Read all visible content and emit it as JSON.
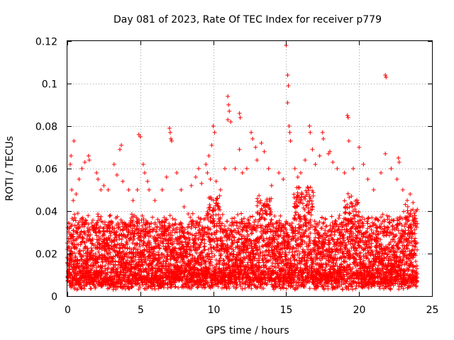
{
  "chart_data": {
    "type": "scatter",
    "title": "Day 081 of 2023, Rate Of TEC Index for receiver p779",
    "xlabel": "GPS time / hours",
    "ylabel": "ROTI / TECUs",
    "xlim": [
      0,
      25
    ],
    "ylim": [
      0,
      0.12
    ],
    "x_ticks": [
      "0",
      "5",
      "10",
      "15",
      "20",
      "25"
    ],
    "y_ticks": [
      "0",
      "0.02",
      "0.04",
      "0.06",
      "0.08",
      "0.1",
      "0.12"
    ],
    "grid": true,
    "marker": "plus",
    "color": "#ff0000",
    "series": [
      {
        "points": [
          [
            0.05,
            0.012
          ],
          [
            0.2,
            0.062
          ],
          [
            0.25,
            0.066
          ],
          [
            0.45,
            0.073
          ],
          [
            0.3,
            0.05
          ],
          [
            0.4,
            0.045
          ],
          [
            0.6,
            0.048
          ],
          [
            0.8,
            0.055
          ],
          [
            1.0,
            0.06
          ],
          [
            1.2,
            0.063
          ],
          [
            1.45,
            0.066
          ],
          [
            1.5,
            0.064
          ],
          [
            2.0,
            0.058
          ],
          [
            2.1,
            0.055
          ],
          [
            2.3,
            0.05
          ],
          [
            2.5,
            0.052
          ],
          [
            2.8,
            0.05
          ],
          [
            3.2,
            0.062
          ],
          [
            3.4,
            0.057
          ],
          [
            3.6,
            0.069
          ],
          [
            3.7,
            0.071
          ],
          [
            3.8,
            0.054
          ],
          [
            4.2,
            0.05
          ],
          [
            4.5,
            0.045
          ],
          [
            4.8,
            0.05
          ],
          [
            4.9,
            0.076
          ],
          [
            5.0,
            0.075
          ],
          [
            5.2,
            0.062
          ],
          [
            5.3,
            0.058
          ],
          [
            5.5,
            0.054
          ],
          [
            5.6,
            0.05
          ],
          [
            6.0,
            0.045
          ],
          [
            6.5,
            0.05
          ],
          [
            6.8,
            0.056
          ],
          [
            7.0,
            0.079
          ],
          [
            7.05,
            0.077
          ],
          [
            7.1,
            0.074
          ],
          [
            7.15,
            0.073
          ],
          [
            7.5,
            0.058
          ],
          [
            7.8,
            0.05
          ],
          [
            8.0,
            0.042
          ],
          [
            8.5,
            0.052
          ],
          [
            8.8,
            0.056
          ],
          [
            9.0,
            0.06
          ],
          [
            9.2,
            0.053
          ],
          [
            9.5,
            0.062
          ],
          [
            9.6,
            0.058
          ],
          [
            9.7,
            0.066
          ],
          [
            9.8,
            0.055
          ],
          [
            9.9,
            0.071
          ],
          [
            10.0,
            0.08
          ],
          [
            10.1,
            0.077
          ],
          [
            10.2,
            0.054
          ],
          [
            10.5,
            0.05
          ],
          [
            10.8,
            0.06
          ],
          [
            11.0,
            0.094
          ],
          [
            11.05,
            0.09
          ],
          [
            11.1,
            0.087
          ],
          [
            11.0,
            0.083
          ],
          [
            11.2,
            0.082
          ],
          [
            11.5,
            0.06
          ],
          [
            11.8,
            0.086
          ],
          [
            11.85,
            0.084
          ],
          [
            11.8,
            0.069
          ],
          [
            12.0,
            0.058
          ],
          [
            12.3,
            0.06
          ],
          [
            12.6,
            0.077
          ],
          [
            12.7,
            0.074
          ],
          [
            12.9,
            0.07
          ],
          [
            13.0,
            0.064
          ],
          [
            13.3,
            0.072
          ],
          [
            13.5,
            0.068
          ],
          [
            13.8,
            0.06
          ],
          [
            14.0,
            0.052
          ],
          [
            14.5,
            0.058
          ],
          [
            14.8,
            0.055
          ],
          [
            15.0,
            0.118
          ],
          [
            15.1,
            0.104
          ],
          [
            15.15,
            0.099
          ],
          [
            15.1,
            0.091
          ],
          [
            15.2,
            0.08
          ],
          [
            15.25,
            0.077
          ],
          [
            15.3,
            0.073
          ],
          [
            15.6,
            0.06
          ],
          [
            15.8,
            0.056
          ],
          [
            16.0,
            0.058
          ],
          [
            16.3,
            0.064
          ],
          [
            16.6,
            0.08
          ],
          [
            16.65,
            0.077
          ],
          [
            16.8,
            0.069
          ],
          [
            17.0,
            0.062
          ],
          [
            17.3,
            0.066
          ],
          [
            17.5,
            0.077
          ],
          [
            17.55,
            0.074
          ],
          [
            17.9,
            0.067
          ],
          [
            18.0,
            0.068
          ],
          [
            18.2,
            0.063
          ],
          [
            18.5,
            0.06
          ],
          [
            19.0,
            0.058
          ],
          [
            19.2,
            0.085
          ],
          [
            19.25,
            0.084
          ],
          [
            19.3,
            0.073
          ],
          [
            19.6,
            0.06
          ],
          [
            20.0,
            0.07
          ],
          [
            20.3,
            0.062
          ],
          [
            20.6,
            0.055
          ],
          [
            21.0,
            0.05
          ],
          [
            21.5,
            0.058
          ],
          [
            21.8,
            0.104
          ],
          [
            21.85,
            0.103
          ],
          [
            21.8,
            0.067
          ],
          [
            22.2,
            0.06
          ],
          [
            22.6,
            0.055
          ],
          [
            22.7,
            0.065
          ],
          [
            22.75,
            0.063
          ],
          [
            23.0,
            0.05
          ],
          [
            23.3,
            0.045
          ],
          [
            23.5,
            0.048
          ],
          [
            23.7,
            0.044
          ],
          [
            23.9,
            0.04
          ]
        ]
      }
    ]
  }
}
